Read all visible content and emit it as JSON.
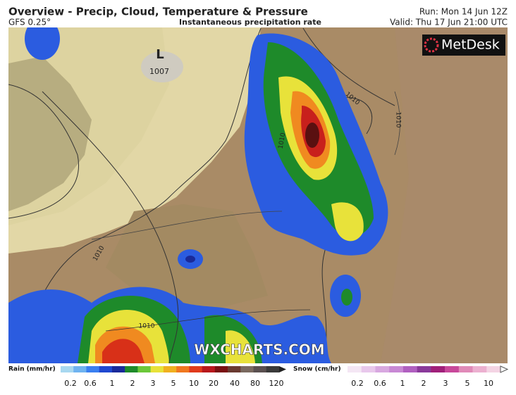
{
  "header": {
    "title": "Overview - Precip, Cloud, Temperature & Pressure",
    "model": "GFS 0.25°",
    "field": "Instantaneous precipitation rate",
    "run": "Run: Mon 14 Jun 12Z",
    "valid": "Valid: Thu 17 Jun 21:00 UTC"
  },
  "map": {
    "brand": "MetDesk",
    "low_symbol": "L",
    "low_pressure": "1007",
    "isobar_labels": [
      "1010",
      "1010",
      "1010",
      "1010",
      "1010"
    ],
    "watermark": "WXCHARTS.COM"
  },
  "legend": {
    "rain": {
      "title": "Rain (mm/hr)",
      "ticks": [
        0.2,
        0.6,
        1,
        2,
        3,
        5,
        10,
        20,
        40,
        80,
        120
      ]
    },
    "snow": {
      "title": "Snow (cm/hr)",
      "ticks": [
        0.2,
        0.6,
        1,
        2,
        3,
        5,
        10
      ]
    }
  }
}
